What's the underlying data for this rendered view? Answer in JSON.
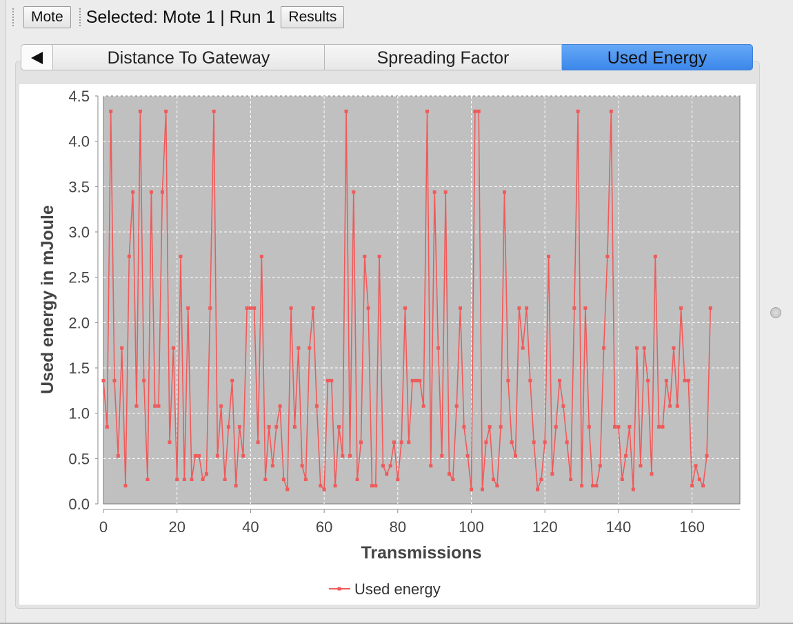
{
  "toolbar": {
    "mote_button": "Mote",
    "selected_text": "Selected: Mote 1 | Run 1",
    "results_button": "Results"
  },
  "tabs": [
    {
      "label": "Distance To Gateway",
      "active": false
    },
    {
      "label": "Spreading Factor",
      "active": false
    },
    {
      "label": "Used Energy",
      "active": true
    }
  ],
  "icons": {
    "tab_scroll": "left-triangle-icon"
  },
  "colors": {
    "series": "#f05a5a",
    "plot_bg": "#c0c0c0",
    "tab_active": "#3c87ea"
  },
  "chart_data": {
    "type": "line",
    "xlabel": "Transmissions",
    "ylabel": "Used energy in mJoule",
    "xlim": [
      0,
      173
    ],
    "ylim": [
      0,
      4.5
    ],
    "x_ticks": [
      0,
      20,
      40,
      60,
      80,
      100,
      120,
      140,
      160
    ],
    "y_ticks": [
      "0.0",
      "0.5",
      "1.0",
      "1.5",
      "2.0",
      "2.5",
      "3.0",
      "3.5",
      "4.0",
      "4.5"
    ],
    "grid": true,
    "legend_position": "bottom",
    "series": [
      {
        "name": "Used energy",
        "x_start": 0,
        "x_step": 1,
        "values": [
          1.36,
          0.85,
          4.33,
          1.36,
          0.53,
          1.72,
          0.2,
          2.73,
          3.44,
          1.08,
          4.33,
          1.36,
          0.27,
          3.44,
          1.08,
          1.08,
          3.44,
          4.33,
          0.68,
          1.72,
          0.27,
          2.73,
          0.27,
          2.16,
          0.27,
          0.53,
          0.53,
          0.27,
          0.33,
          2.16,
          4.33,
          0.53,
          1.08,
          0.27,
          0.85,
          1.36,
          0.2,
          0.85,
          0.53,
          2.16,
          2.16,
          2.16,
          0.68,
          2.73,
          0.27,
          0.85,
          0.42,
          0.85,
          1.08,
          0.27,
          0.16,
          2.16,
          0.85,
          1.72,
          0.42,
          0.27,
          1.72,
          2.16,
          1.08,
          0.2,
          0.16,
          1.36,
          1.36,
          0.2,
          0.85,
          0.53,
          4.33,
          0.53,
          3.44,
          0.27,
          0.68,
          2.73,
          2.16,
          0.2,
          0.2,
          2.73,
          0.42,
          0.33,
          0.42,
          0.68,
          0.27,
          0.68,
          2.16,
          0.68,
          1.36,
          1.36,
          1.36,
          1.08,
          4.33,
          0.42,
          3.44,
          1.72,
          0.53,
          3.44,
          0.33,
          0.27,
          1.08,
          2.16,
          0.85,
          0.53,
          0.16,
          4.33,
          4.33,
          0.16,
          0.68,
          0.85,
          0.27,
          0.2,
          0.85,
          3.44,
          1.36,
          0.68,
          0.53,
          2.16,
          1.72,
          2.16,
          1.36,
          0.68,
          0.16,
          0.27,
          0.68,
          2.73,
          0.33,
          0.85,
          1.36,
          1.08,
          0.68,
          0.27,
          2.16,
          4.33,
          0.2,
          2.16,
          0.85,
          0.2,
          0.2,
          0.42,
          1.72,
          2.73,
          4.33,
          0.85,
          0.85,
          0.27,
          0.53,
          0.85,
          0.16,
          1.72,
          0.42,
          1.72,
          1.36,
          0.33,
          2.73,
          0.85,
          0.85,
          1.36,
          1.08,
          1.72,
          1.08,
          2.16,
          1.36,
          1.36,
          0.2,
          0.42,
          0.27,
          0.2,
          0.53,
          2.16
        ]
      }
    ]
  }
}
